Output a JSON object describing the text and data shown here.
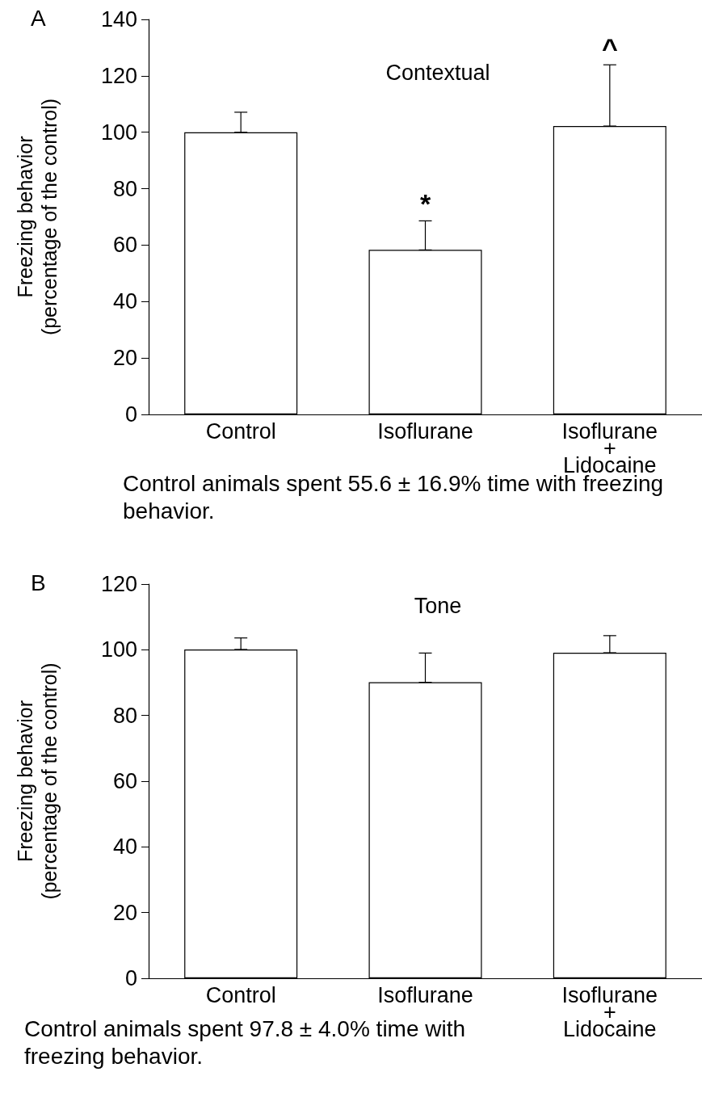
{
  "chart_data": [
    {
      "type": "bar",
      "title": "Contextual",
      "ylabel": "Freezing behavior\n(percentage of the control)",
      "categories": [
        "Control",
        "Isoflurane",
        "Isoflurane\n+\nLidocaine"
      ],
      "values": [
        100,
        58.3,
        102.2
      ],
      "color": "#ffffff",
      "errors": [
        [
          100,
          107.1
        ],
        [
          58.3,
          68.6
        ],
        [
          102.2,
          123.9
        ]
      ],
      "ylim": [
        0,
        140
      ],
      "yticks": [
        0,
        20,
        40,
        60,
        80,
        100,
        120,
        140
      ],
      "grid": false,
      "annotations": [
        "A",
        {
          "text": "*",
          "x": "Isoflurane",
          "y": 68.6
        },
        {
          "text": "^",
          "x": "Isoflurane\n+\nLidocaine",
          "y": 123.9
        },
        "Control animals spent 55.6 ± 16.9% time with freezing behavior."
      ]
    },
    {
      "type": "bar",
      "title": "Tone",
      "ylabel": "Freezing behavior\n(percentage of the control)",
      "categories": [
        "Control",
        "Isoflurane",
        "Isoflurane\n+\nLidocaine"
      ],
      "values": [
        100.1,
        90.1,
        99.1
      ],
      "color": "#ffffff",
      "errors": [
        [
          100.1,
          103.6
        ],
        [
          90.1,
          99.0
        ],
        [
          99.1,
          104.3
        ]
      ],
      "ylim": [
        0,
        120
      ],
      "yticks": [
        0,
        20,
        40,
        60,
        80,
        100,
        120
      ],
      "grid": false,
      "annotations": [
        "B",
        "Control animals spent 97.8 ± 4.0% time with freezing behavior."
      ]
    }
  ]
}
